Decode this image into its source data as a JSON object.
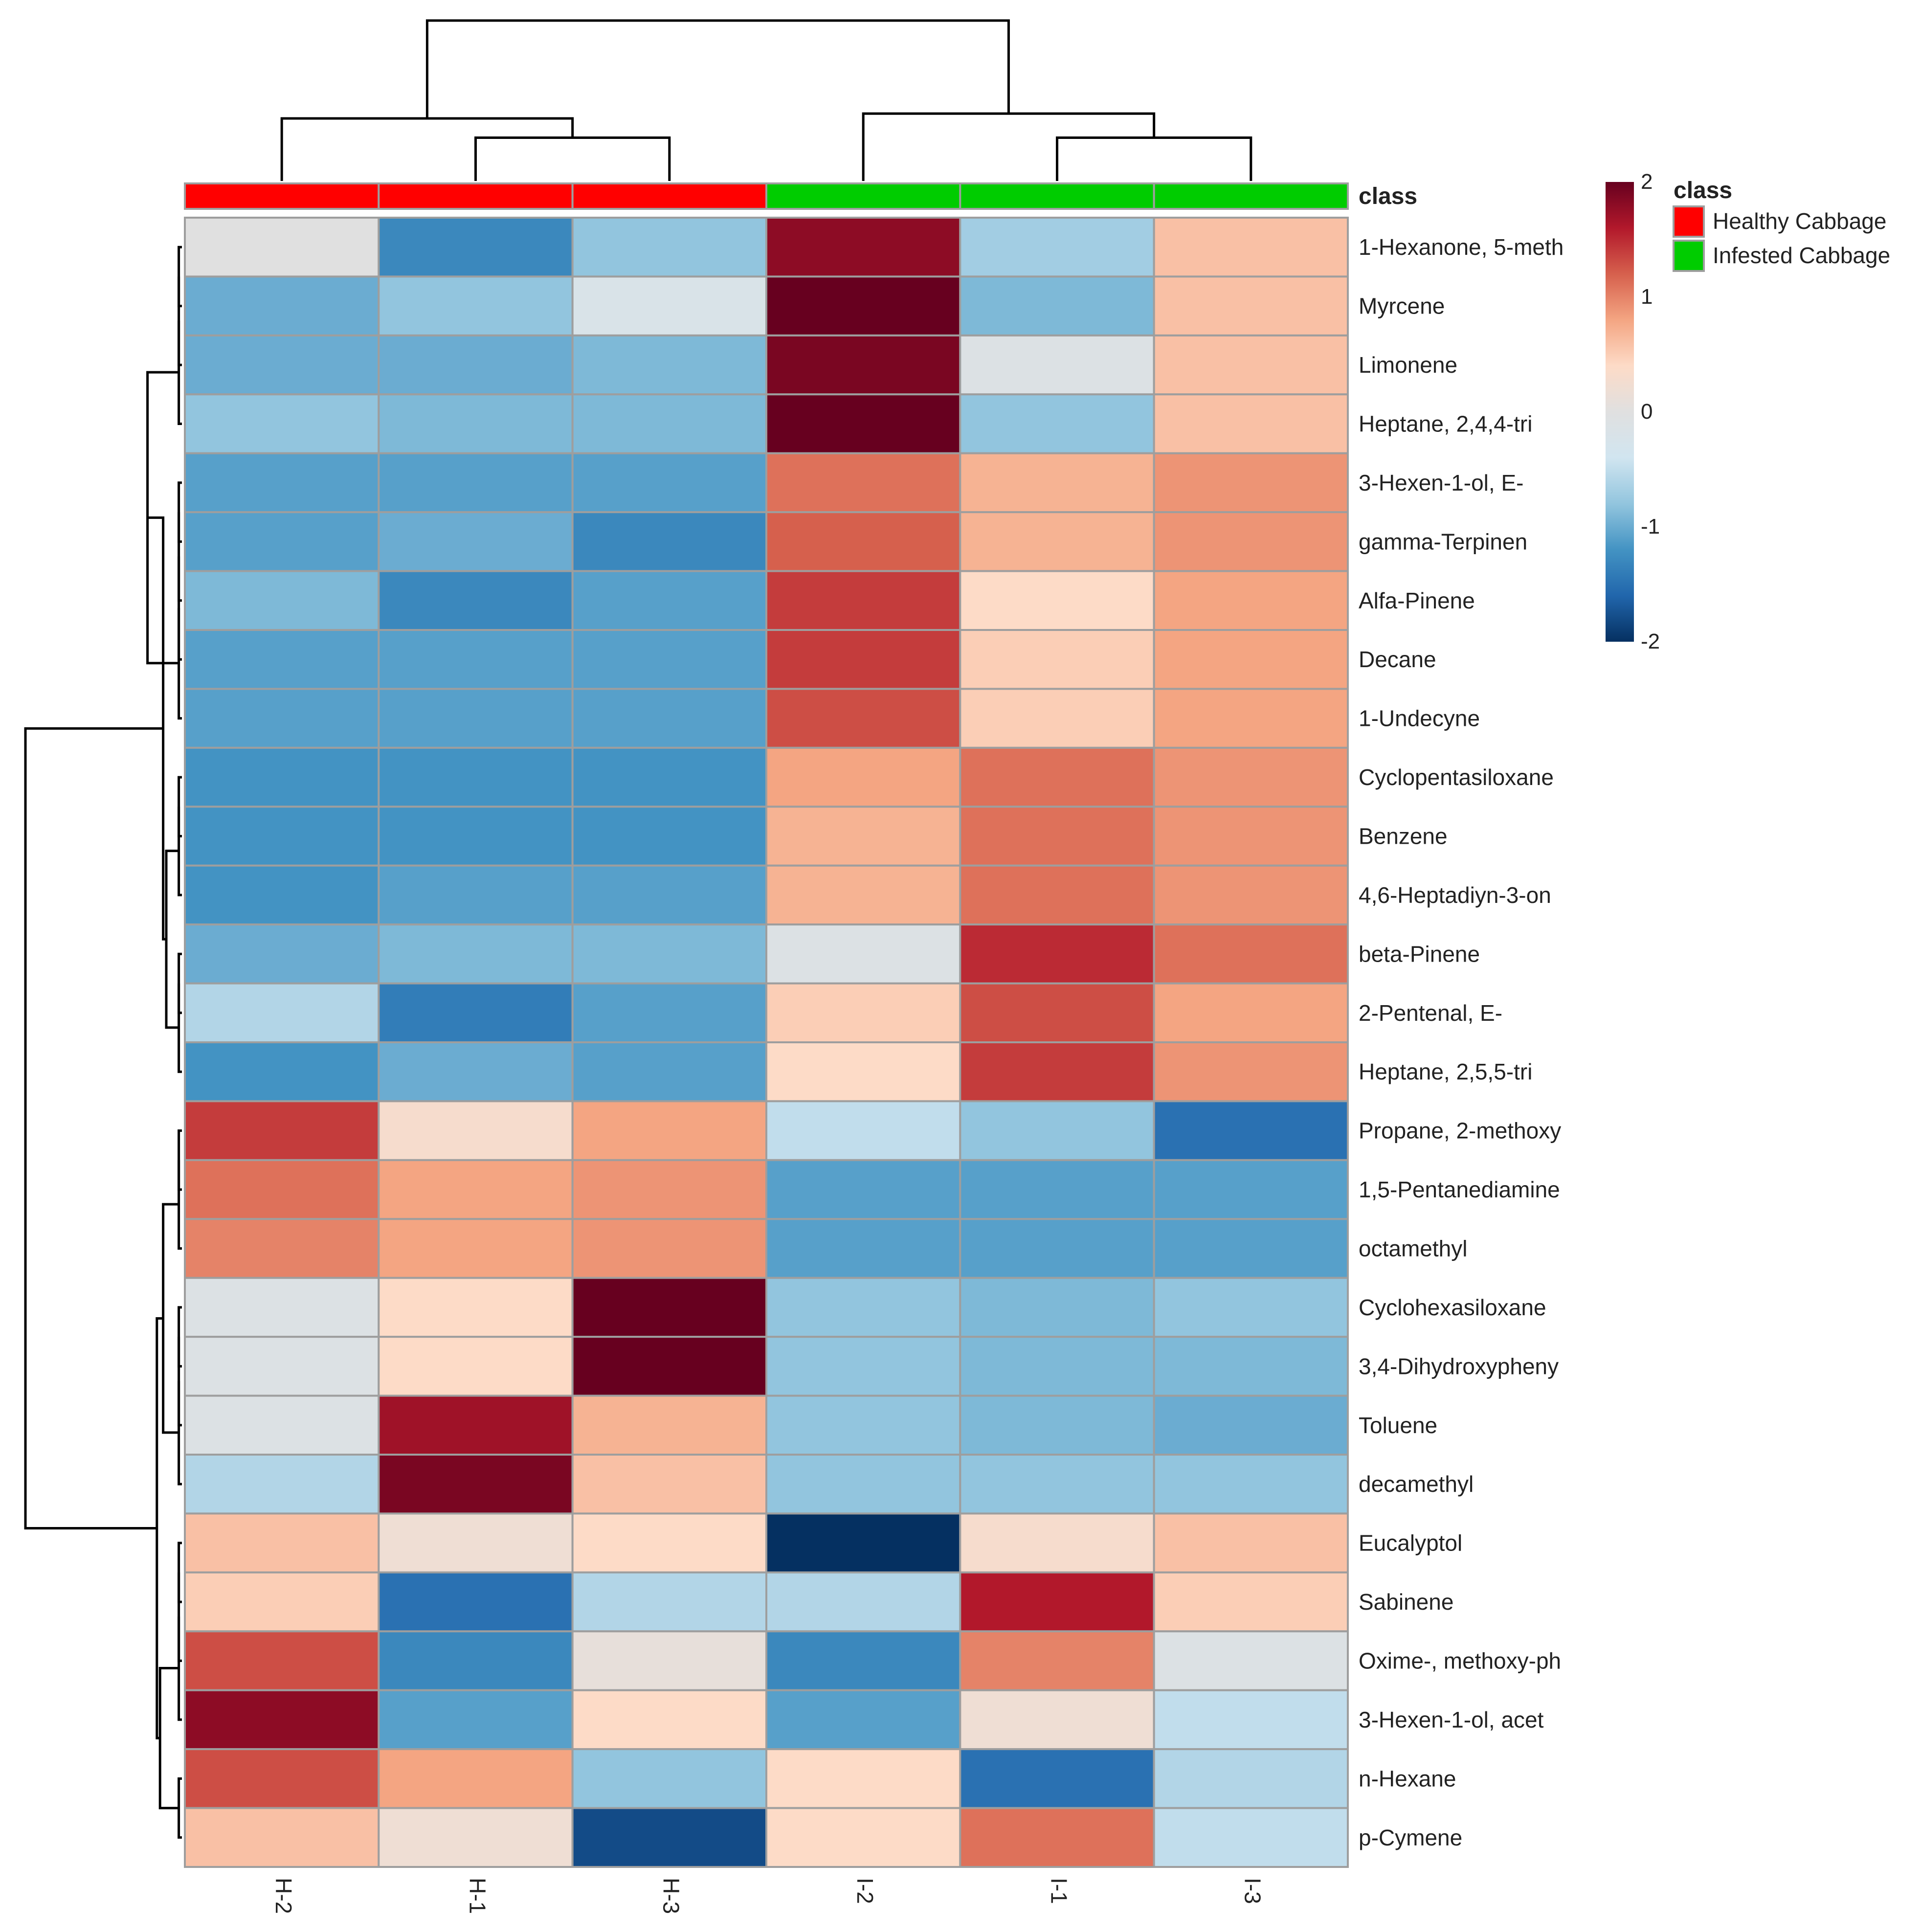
{
  "chart_data": {
    "type": "heatmap",
    "columns": [
      "H-2",
      "H-1",
      "H-3",
      "I-2",
      "I-1",
      "I-3"
    ],
    "column_classes": [
      "Healthy Cabbage",
      "Healthy Cabbage",
      "Healthy Cabbage",
      "Infested Cabbage",
      "Infested Cabbage",
      "Infested Cabbage"
    ],
    "rows": [
      "1-Hexanone, 5-meth",
      "Myrcene",
      "Limonene",
      "Heptane, 2,4,4-tri",
      "3-Hexen-1-ol, E-",
      "gamma-Terpinen",
      "Alfa-Pinene",
      "Decane",
      "1-Undecyne",
      "Cyclopentasiloxane",
      "Benzene",
      "4,6-Heptadiyn-3-on",
      "beta-Pinene",
      "2-Pentenal, E-",
      "Heptane, 2,5,5-tri",
      "Propane, 2-methoxy",
      "1,5-Pentanediamine",
      "octamethyl",
      "Cyclohexasiloxane",
      "3,4-Dihydroxypheny",
      "Toluene",
      "decamethyl",
      "Eucalyptol",
      "Sabinene",
      "Oxime-, methoxy-ph",
      "3-Hexen-1-ol, acet",
      "n-Hexane",
      "p-Cymene"
    ],
    "values": [
      [
        0.0,
        -1.3,
        -0.8,
        1.8,
        -0.7,
        0.6
      ],
      [
        -1.0,
        -0.8,
        -0.2,
        2.0,
        -0.9,
        0.6
      ],
      [
        -1.0,
        -1.0,
        -0.9,
        1.9,
        -0.1,
        0.6
      ],
      [
        -0.8,
        -0.9,
        -0.9,
        2.0,
        -0.8,
        0.6
      ],
      [
        -1.1,
        -1.1,
        -1.1,
        1.1,
        0.7,
        0.9
      ],
      [
        -1.1,
        -1.0,
        -1.3,
        1.2,
        0.7,
        0.9
      ],
      [
        -0.9,
        -1.3,
        -1.1,
        1.4,
        0.4,
        0.8
      ],
      [
        -1.1,
        -1.1,
        -1.1,
        1.4,
        0.5,
        0.8
      ],
      [
        -1.1,
        -1.1,
        -1.1,
        1.3,
        0.5,
        0.8
      ],
      [
        -1.2,
        -1.2,
        -1.2,
        0.8,
        1.1,
        0.9
      ],
      [
        -1.2,
        -1.2,
        -1.2,
        0.7,
        1.1,
        0.9
      ],
      [
        -1.2,
        -1.1,
        -1.1,
        0.7,
        1.1,
        0.9
      ],
      [
        -1.0,
        -0.9,
        -0.9,
        -0.1,
        1.5,
        1.1
      ],
      [
        -0.6,
        -1.4,
        -1.1,
        0.5,
        1.3,
        0.8
      ],
      [
        -1.2,
        -1.0,
        -1.1,
        0.4,
        1.4,
        0.9
      ],
      [
        1.4,
        0.3,
        0.8,
        -0.5,
        -0.8,
        -1.5
      ],
      [
        1.1,
        0.8,
        0.9,
        -1.1,
        -1.1,
        -1.1
      ],
      [
        1.0,
        0.8,
        0.9,
        -1.1,
        -1.1,
        -1.1
      ],
      [
        -0.1,
        0.4,
        2.0,
        -0.8,
        -0.9,
        -0.8
      ],
      [
        -0.1,
        0.4,
        2.0,
        -0.8,
        -0.9,
        -0.9
      ],
      [
        -0.1,
        1.7,
        0.7,
        -0.8,
        -0.9,
        -1.0
      ],
      [
        -0.6,
        1.9,
        0.6,
        -0.8,
        -0.8,
        -0.8
      ],
      [
        0.6,
        0.2,
        0.4,
        -2.0,
        0.3,
        0.6
      ],
      [
        0.5,
        -1.5,
        -0.6,
        -0.6,
        1.6,
        0.5
      ],
      [
        1.3,
        -1.3,
        0.1,
        -1.3,
        1.0,
        -0.1
      ],
      [
        1.8,
        -1.1,
        0.4,
        -1.1,
        0.2,
        -0.5
      ],
      [
        1.3,
        0.8,
        -0.8,
        0.4,
        -1.5,
        -0.6
      ],
      [
        0.6,
        0.2,
        -1.8,
        0.4,
        1.1,
        -0.5
      ]
    ],
    "color_scale": {
      "min": -2,
      "max": 2,
      "ticks": [
        "2",
        "1",
        "0",
        "-1",
        "-2"
      ],
      "colors": [
        "#053061",
        "#2166AC",
        "#4393C3",
        "#92C5DE",
        "#D1E5F0",
        "#E0E0E0",
        "#FDDBC7",
        "#F4A582",
        "#D6604D",
        "#B2182B",
        "#67001F"
      ]
    },
    "legend": {
      "title": "class",
      "items": [
        {
          "label": "Healthy Cabbage",
          "color": "#FF0000"
        },
        {
          "label": "Infested Cabbage",
          "color": "#00CC00"
        }
      ]
    },
    "annotation_label": "class",
    "col_dendrogram": {
      "merges": [
        [
          1,
          2,
          0.27
        ],
        [
          0,
          1,
          0.39
        ],
        [
          4,
          5,
          0.27
        ],
        [
          3,
          4,
          0.42
        ],
        [
          0,
          3,
          1.0
        ]
      ]
    },
    "row_dendrogram": {
      "merges": [
        [
          0,
          1,
          0.02
        ],
        [
          0,
          2,
          0.02
        ],
        [
          0,
          3,
          0.02
        ],
        [
          4,
          5,
          0.02
        ],
        [
          4,
          6,
          0.02
        ],
        [
          4,
          7,
          0.02
        ],
        [
          4,
          8,
          0.02
        ],
        [
          0,
          4,
          0.22
        ],
        [
          9,
          10,
          0.02
        ],
        [
          9,
          11,
          0.02
        ],
        [
          12,
          13,
          0.02
        ],
        [
          12,
          14,
          0.02
        ],
        [
          9,
          12,
          0.1
        ],
        [
          0,
          9,
          0.12
        ],
        [
          15,
          16,
          0.02
        ],
        [
          15,
          17,
          0.02
        ],
        [
          18,
          19,
          0.02
        ],
        [
          18,
          20,
          0.02
        ],
        [
          18,
          21,
          0.02
        ],
        [
          15,
          18,
          0.12
        ],
        [
          22,
          23,
          0.02
        ],
        [
          22,
          24,
          0.02
        ],
        [
          22,
          25,
          0.02
        ],
        [
          26,
          27,
          0.02
        ],
        [
          22,
          26,
          0.14
        ],
        [
          15,
          22,
          0.16
        ],
        [
          0,
          15,
          1.0
        ]
      ]
    }
  }
}
